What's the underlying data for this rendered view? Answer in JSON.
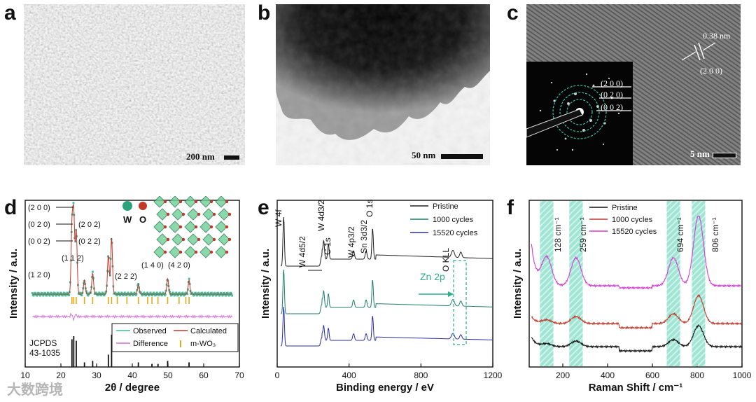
{
  "panel_labels": [
    "a",
    "b",
    "c",
    "d",
    "e",
    "f"
  ],
  "panel_a": {
    "scale_bar": "200 nm"
  },
  "panel_b": {
    "scale_bar": "50 nm"
  },
  "panel_c": {
    "scale_bar": "5 nm",
    "lattice_spacing": "0.38 nm",
    "lattice_plane": "(2 0 0)",
    "saed_planes": [
      "(2 0 0)",
      "(0 2 0)",
      "(0 0 2)"
    ]
  },
  "chart_data": [
    {
      "type": "line",
      "panel": "d",
      "xlabel": "2θ / degree",
      "ylabel": "Intensity / a.u.",
      "xlim": [
        10,
        70
      ],
      "xticks": [
        10,
        20,
        30,
        40,
        50,
        60,
        70
      ],
      "peak_labels": [
        "(2 0 0)",
        "(0 2 0)",
        "(0 0 2)",
        "(2 0 2)",
        "(0 2 2)",
        "(1 1 2)",
        "(1 2 0)",
        "(2 2 2)",
        "(1 4 0)",
        "(4 2 0)"
      ],
      "legend": [
        "Observed",
        "Calculated",
        "Difference",
        "m-WO₃"
      ],
      "legend_position": "bottom-right",
      "atom_legend": [
        "W",
        "O"
      ],
      "reference_label": [
        "JCPDS",
        "43-1035"
      ],
      "peaks_2theta": [
        23.1,
        23.6,
        24.3,
        26.6,
        28.9,
        33.3,
        34.2,
        41.7,
        49.9,
        55.9
      ],
      "reference_lines_2theta": [
        23.1,
        23.6,
        24.3,
        26.6,
        28.9,
        33.3,
        34.2,
        41.7,
        45.5,
        47.2,
        49.9,
        55.9
      ],
      "reference_line_heights": [
        0.9,
        1.0,
        0.85,
        0.15,
        0.2,
        0.4,
        1.05,
        0.15,
        0.1,
        0.1,
        0.2,
        0.15
      ]
    },
    {
      "type": "line",
      "panel": "e",
      "xlabel": "Binding energy / eV",
      "ylabel": "Intensity / a.u.",
      "xlim": [
        0,
        1200
      ],
      "xticks": [
        0,
        400,
        800,
        1200
      ],
      "series": [
        {
          "name": "Pristine",
          "color": "#222222"
        },
        {
          "name": "1000 cycles",
          "color": "#1f7f6a"
        },
        {
          "name": "15520 cycles",
          "color": "#2b2ea0"
        }
      ],
      "legend_position": "top-right",
      "peak_annotations": [
        "W 4f",
        "W 4d5/2",
        "C 1s",
        "W 4d3/2",
        "W 4p3/2",
        "Sn 3d3/2",
        "O 1s",
        "O KLL",
        "Zn 2p"
      ],
      "peaks_eV": [
        36,
        247,
        285,
        259,
        425,
        495,
        531,
        978,
        1022
      ]
    },
    {
      "type": "line",
      "panel": "f",
      "xlabel": "Raman Shift / cm⁻¹",
      "ylabel": "Intensity / a.u.",
      "xlim": [
        50,
        1000
      ],
      "xticks": [
        200,
        400,
        600,
        800,
        1000
      ],
      "series": [
        {
          "name": "Pristine",
          "color": "#111111"
        },
        {
          "name": "1000 cycles",
          "color": "#c0392b"
        },
        {
          "name": "15520 cycles",
          "color": "#d63ad6"
        }
      ],
      "legend_position": "top-left",
      "bands_cm": [
        128,
        259,
        694,
        806
      ],
      "band_labels": [
        "128 cm⁻¹",
        "259 cm⁻¹",
        "694 cm⁻¹",
        "806 cm⁻¹"
      ]
    }
  ],
  "watermark": "大数跨境"
}
